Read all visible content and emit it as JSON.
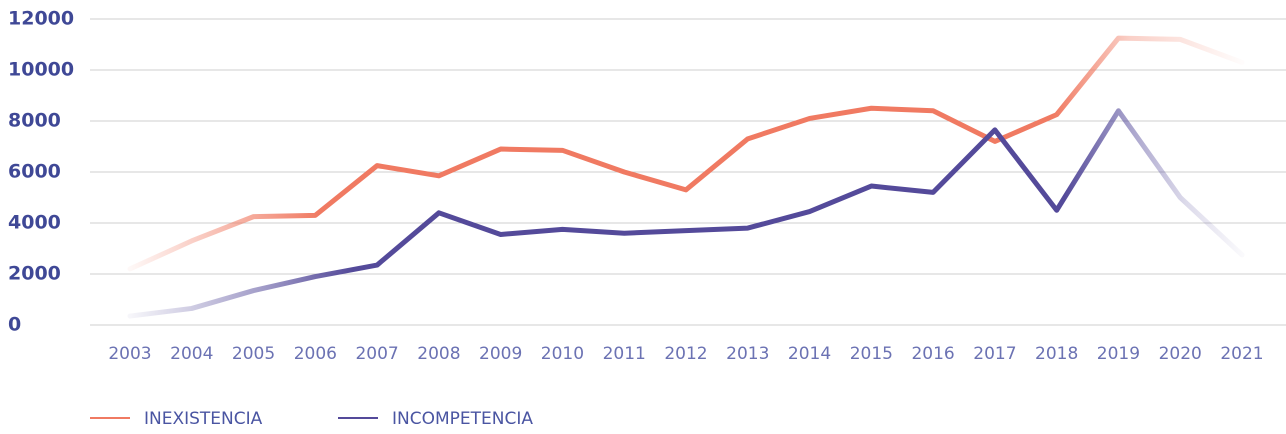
{
  "chart_data": {
    "type": "line",
    "categories": [
      "2003",
      "2004",
      "2005",
      "2006",
      "2007",
      "2008",
      "2009",
      "2010",
      "2011",
      "2012",
      "2013",
      "2014",
      "2015",
      "2016",
      "2017",
      "2018",
      "2019",
      "2020",
      "2021"
    ],
    "series": [
      {
        "name": "INEXISTENCIA",
        "color": "#f07a62",
        "values": [
          2200,
          3300,
          4250,
          4300,
          6250,
          5850,
          6900,
          6850,
          6000,
          5300,
          7300,
          8100,
          8500,
          8400,
          7200,
          8250,
          11250,
          11200,
          10300
        ]
      },
      {
        "name": "INCOMPETENCIA",
        "color": "#544a9a",
        "values": [
          350,
          650,
          1350,
          1900,
          2350,
          4400,
          3550,
          3750,
          3600,
          3700,
          3800,
          4450,
          5450,
          5200,
          7650,
          4500,
          8400,
          5000,
          2750
        ]
      }
    ],
    "ylim": [
      0,
      12000
    ],
    "yticks": [
      0,
      2000,
      4000,
      6000,
      8000,
      10000,
      12000
    ],
    "grid": true
  }
}
